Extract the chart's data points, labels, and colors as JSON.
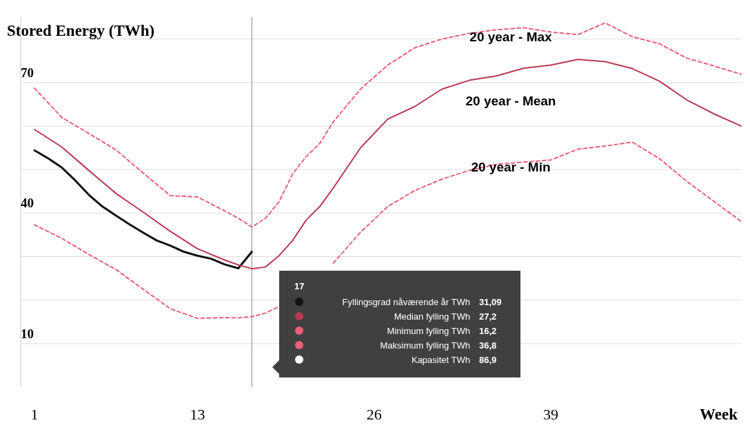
{
  "chart_data": {
    "type": "line",
    "ylabel": "Stored Energy (TWh)",
    "xlabel": "Week",
    "xlim": [
      1,
      53
    ],
    "xticks": [
      1,
      13,
      26,
      39
    ],
    "ylim": [
      0,
      85
    ],
    "yticks": [
      10,
      {
        "value": 20,
        "label": null
      },
      {
        "value": 30,
        "label": null
      },
      40,
      {
        "value": 50,
        "label": null
      },
      {
        "value": 60,
        "label": null
      },
      70,
      {
        "value": 80,
        "label": null
      }
    ],
    "grid": "y",
    "x": [
      1,
      3,
      5,
      7,
      9,
      11,
      13,
      15,
      16,
      17,
      18,
      19,
      20,
      21,
      22,
      23,
      25,
      27,
      29,
      31,
      33,
      35,
      37,
      39,
      41,
      43,
      45,
      47,
      49,
      51,
      53
    ],
    "series": [
      {
        "color": "#111111",
        "line_style": "solid",
        "x": [
          1,
          2,
          3,
          4,
          5,
          6,
          7,
          8,
          9,
          10,
          11,
          12,
          13,
          14,
          15,
          16,
          17
        ],
        "values": [
          54.4,
          52.6,
          50.5,
          47.5,
          44.2,
          41.5,
          39.4,
          37.4,
          35.5,
          33.7,
          32.5,
          31.1,
          30.2,
          29.5,
          28.2,
          27.3,
          31.1
        ]
      },
      {
        "color": "#b83a52",
        "line_style": "solid",
        "values": [
          59.2,
          55.2,
          49.8,
          44.5,
          40.2,
          35.8,
          31.8,
          29.2,
          28.1,
          27.2,
          27.6,
          30.2,
          33.7,
          38.4,
          41.5,
          45.8,
          55,
          61.6,
          64.5,
          68.5,
          70.5,
          71.5,
          73.3,
          74,
          75.3,
          74.8,
          73.2,
          70.3,
          66,
          62.8,
          60
        ]
      },
      {
        "color": "#e8607a",
        "line_style": "dashed",
        "values": [
          37.3,
          34.2,
          30.5,
          27,
          22.5,
          18,
          15.8,
          16,
          15.9,
          16.2,
          17,
          18.5,
          null,
          null,
          null,
          28.5,
          35.6,
          41.5,
          45.2,
          47.8,
          49.8,
          51.2,
          51.7,
          52.2,
          54.7,
          55.4,
          56.3,
          52.5,
          47.3,
          42.7,
          38.1
        ]
      },
      {
        "color": "#e8607a",
        "line_style": "dashed",
        "values": [
          68.7,
          62,
          58.3,
          54.5,
          49.2,
          44,
          43.7,
          40.5,
          38.8,
          36.8,
          38.8,
          42.6,
          49,
          53,
          56,
          61,
          68.5,
          74,
          78,
          80,
          81.3,
          82.1,
          82.6,
          81.6,
          81,
          83.7,
          80.5,
          78.9,
          75.6,
          73.8,
          71.9
        ]
      }
    ],
    "ref_lines": [
      {
        "axis": "x",
        "value": 17,
        "color": "#999999"
      }
    ],
    "annotations": [
      "20 year - Max",
      "20 year - Mean",
      "20 year - Min",
      "17",
      "Fyllingsgrad nåværende år TWh",
      "31,09",
      "Median fylling TWh",
      "27,2",
      "Minimum fylling TWh",
      "16,2",
      "Maksimum fylling TWh",
      "36,8",
      "Kapasitet TWh",
      "86,9"
    ]
  }
}
